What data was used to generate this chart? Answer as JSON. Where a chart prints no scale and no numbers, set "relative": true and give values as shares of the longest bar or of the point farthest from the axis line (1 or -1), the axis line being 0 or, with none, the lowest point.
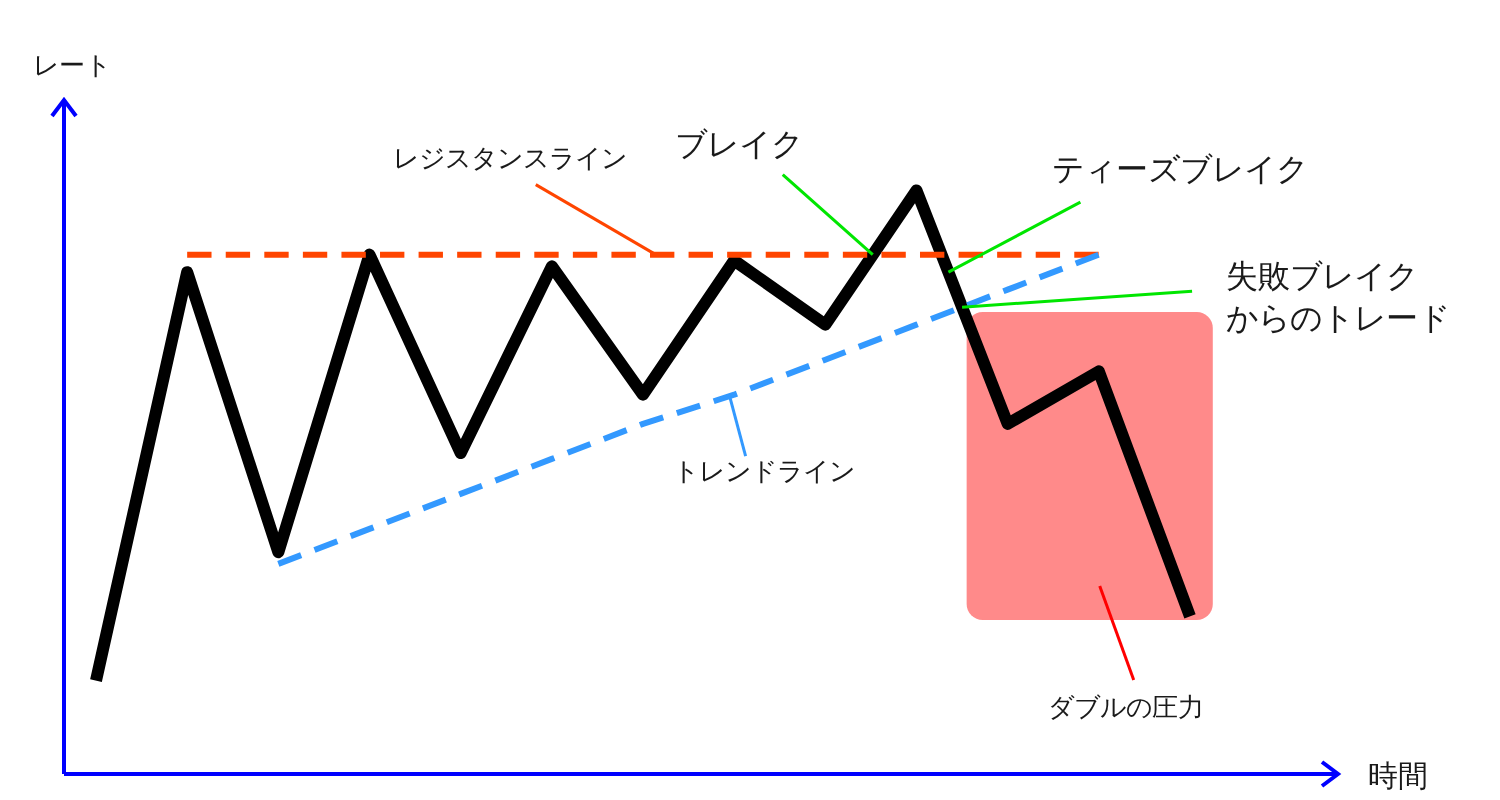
{
  "chart_data": {
    "type": "line",
    "relative": true,
    "xlabel": "時間",
    "ylabel": "レート",
    "categories": [
      null,
      null,
      null,
      null,
      null,
      null,
      null,
      null,
      null,
      null,
      null,
      null,
      null
    ],
    "series": [
      {
        "color": "#000000",
        "values": [
          0.16,
          0.86,
          0.38,
          0.89,
          0.55,
          0.87,
          0.65,
          0.88,
          0.77,
          1,
          0.6,
          0.69,
          0.27
        ]
      },
      {
        "name": "レジスタンスライン",
        "color": "#ff4500",
        "line_style": "dashed",
        "values": [
          null,
          0.89,
          0.89,
          0.89,
          0.89,
          0.89,
          0.89,
          0.89,
          0.89,
          0.89,
          0.89,
          0.89,
          null
        ]
      },
      {
        "name": "トレンドライン",
        "color": "#3399ff",
        "line_style": "dashed",
        "values": [
          null,
          null,
          0.36,
          0.42,
          0.48,
          0.54,
          0.6,
          0.65,
          0.71,
          0.77,
          0.83,
          0.89,
          null
        ]
      }
    ],
    "annotations": [
      {
        "text": "ブレイク",
        "y": 0.89
      },
      "ティーズブレイク",
      "失敗ブレイクからのトレード",
      "ダブルの圧力"
    ]
  }
}
